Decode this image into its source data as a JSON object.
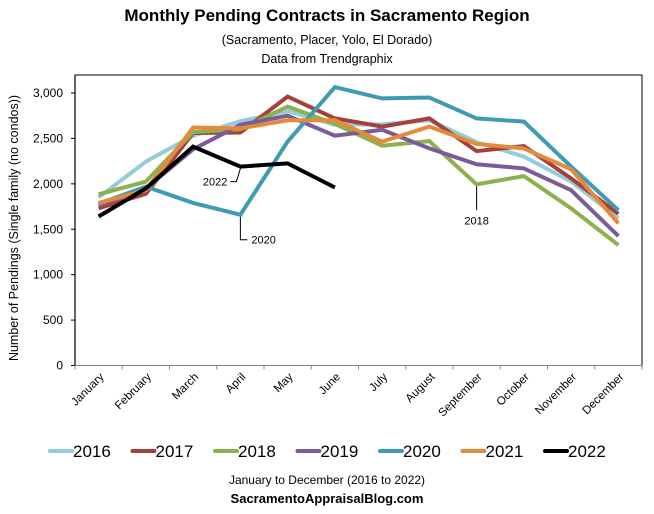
{
  "chart_data": {
    "type": "line",
    "title": "Monthly Pending Contracts in Sacramento Region",
    "subtitle_lines": [
      "(Sacramento, Placer, Yolo, El Dorado)",
      "Data from Trendgraphix"
    ],
    "xlabel": "January to December (2016 to 2022)",
    "ylabel": "Number of Pendings (Single family (no condos))",
    "source": "SacramentoAppraisalBlog.com",
    "categories": [
      "January",
      "February",
      "March",
      "April",
      "May",
      "June",
      "July",
      "August",
      "September",
      "October",
      "November",
      "December"
    ],
    "ylim": [
      0,
      3000
    ],
    "yticks": [
      0,
      500,
      1000,
      1500,
      2000,
      2500,
      3000
    ],
    "ytick_labels": [
      "0",
      "500",
      "1,000",
      "1,500",
      "2,000",
      "2,500",
      "3,000"
    ],
    "grid": false,
    "legend_position": "bottom",
    "series": [
      {
        "name": "2016",
        "color": "#93CDDD",
        "values": [
          1850,
          2245,
          2530,
          2690,
          2800,
          2650,
          2655,
          2700,
          2460,
          2300,
          2025,
          1620
        ]
      },
      {
        "name": "2017",
        "color": "#A5403D",
        "values": [
          1730,
          1890,
          2560,
          2565,
          2960,
          2720,
          2630,
          2720,
          2360,
          2415,
          2060,
          1670
        ]
      },
      {
        "name": "2018",
        "color": "#8EB04E",
        "values": [
          1885,
          2025,
          2570,
          2600,
          2850,
          2660,
          2420,
          2470,
          1995,
          2085,
          1730,
          1325
        ]
      },
      {
        "name": "2019",
        "color": "#7A5C98",
        "values": [
          1760,
          1950,
          2380,
          2650,
          2750,
          2530,
          2595,
          2390,
          2215,
          2170,
          1930,
          1425
        ]
      },
      {
        "name": "2020",
        "color": "#3E9BB3",
        "values": [
          1780,
          1970,
          1790,
          1660,
          2465,
          3065,
          2940,
          2950,
          2720,
          2685,
          2190,
          1710
        ]
      },
      {
        "name": "2021",
        "color": "#E38B3B",
        "values": [
          1790,
          1930,
          2620,
          2610,
          2700,
          2700,
          2465,
          2630,
          2440,
          2390,
          2160,
          1565
        ]
      },
      {
        "name": "2022",
        "color": "#000000",
        "values": [
          1640,
          1950,
          2410,
          2190,
          2225,
          1960,
          null,
          null,
          null,
          null,
          null,
          null
        ]
      }
    ],
    "annotations": [
      {
        "text": "2022",
        "series": "2022",
        "category": "April"
      },
      {
        "text": "2020",
        "series": "2020",
        "category": "April"
      },
      {
        "text": "2018",
        "series": "2018",
        "category": "September"
      }
    ]
  }
}
